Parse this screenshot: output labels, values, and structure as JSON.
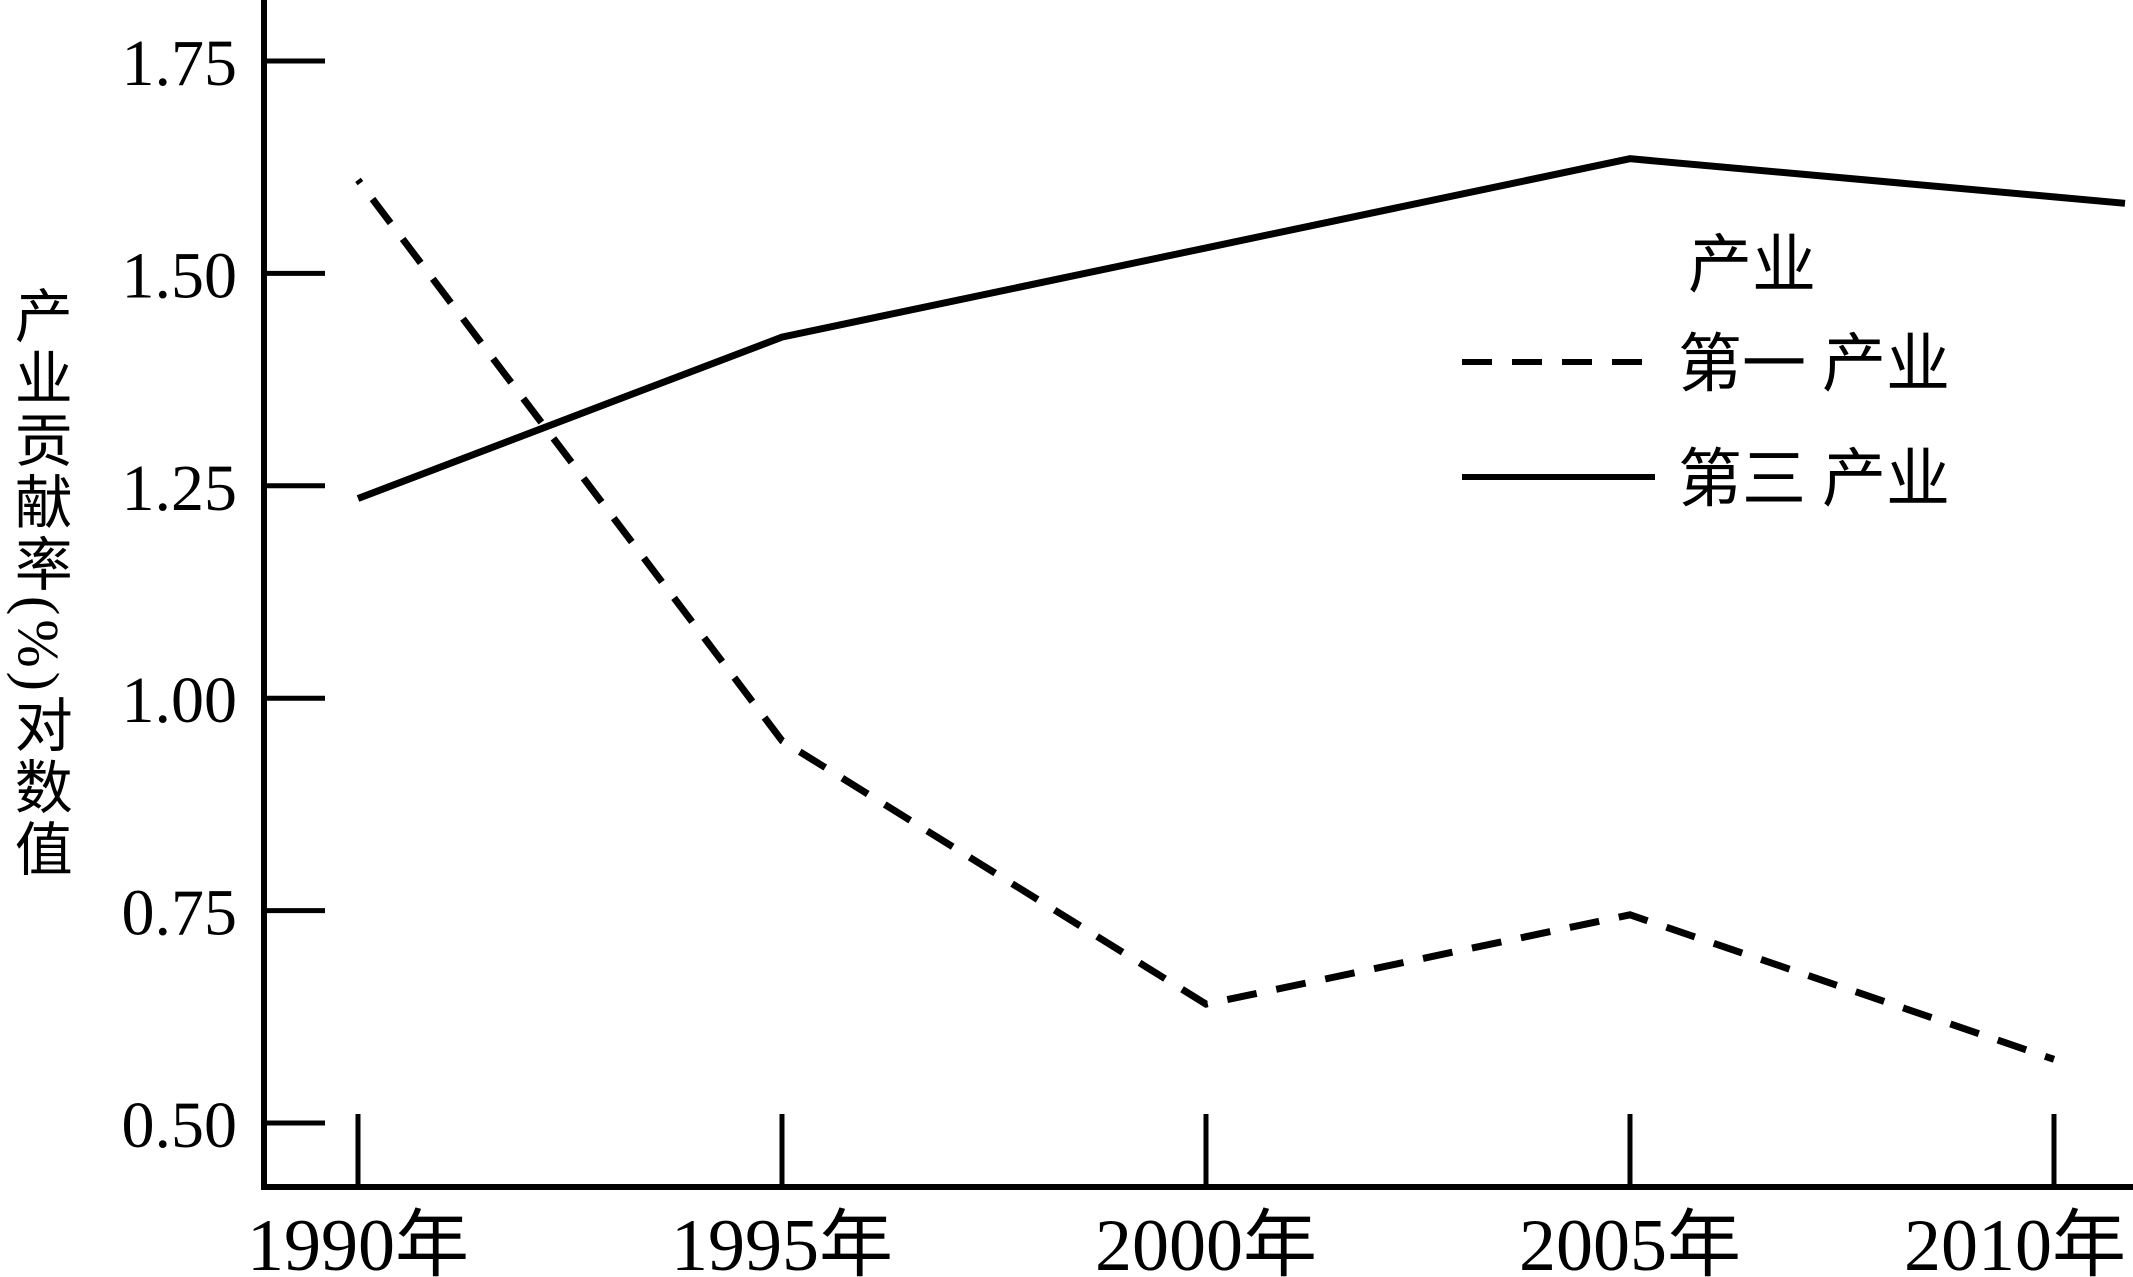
{
  "figure": {
    "background_color": "#ffffff",
    "foreground_color": "#000000"
  },
  "chart_data": {
    "type": "line",
    "title": "",
    "xlabel": "",
    "ylabel": "产业贡献率(%)对数值",
    "categories": [
      "1990年",
      "1995年",
      "2000年",
      "2005年",
      "2010年"
    ],
    "ylim": [
      0.5,
      1.75
    ],
    "yticks": [
      1.75,
      1.5,
      1.25,
      1.0,
      0.75,
      0.5
    ],
    "ytick_labels": [
      "1.75",
      "1.50",
      "1.25",
      "1.00",
      "0.75",
      "0.50"
    ],
    "grid": false,
    "legend_position": "inside-upper-right",
    "legend": {
      "title": "产业",
      "entries": [
        "第一 产业",
        "第三 产业"
      ]
    },
    "series": [
      {
        "name": "第一 产业",
        "style": "dashed",
        "values": [
          1.61,
          0.95,
          0.64,
          0.745,
          0.575
        ],
        "extends_to_right_edge": false
      },
      {
        "name": "第三 产业",
        "style": "solid",
        "values": [
          1.235,
          1.425,
          1.53,
          1.635,
          1.59
        ],
        "extends_to_right_edge": true
      }
    ]
  }
}
